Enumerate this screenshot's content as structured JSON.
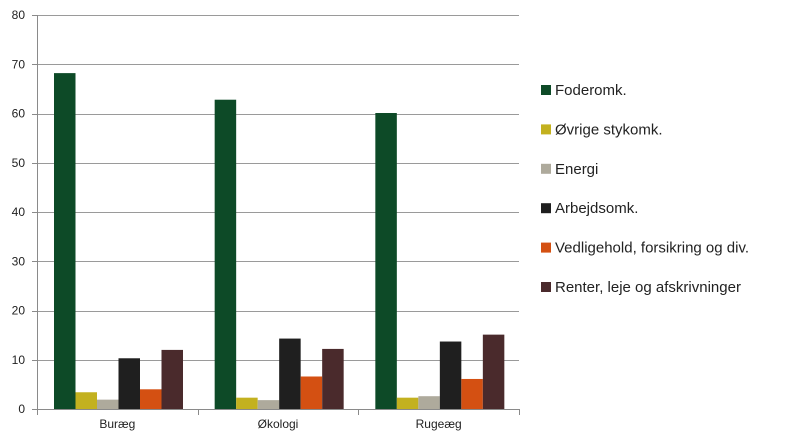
{
  "chart_data": {
    "type": "bar",
    "categories": [
      "Buræg",
      "Økologi",
      "Rugeæg"
    ],
    "series": [
      {
        "name": "Foderomk.",
        "color": "#0d4a27",
        "values": [
          68.2,
          62.8,
          60.1
        ]
      },
      {
        "name": "Øvrige stykomk.",
        "color": "#c3b11f",
        "values": [
          3.4,
          2.3,
          2.3
        ]
      },
      {
        "name": "Energi",
        "color": "#aeaa9c",
        "values": [
          1.9,
          1.8,
          2.6
        ]
      },
      {
        "name": "Arbejdsomk.",
        "color": "#1f1f1f",
        "values": [
          10.3,
          14.3,
          13.7
        ]
      },
      {
        "name": "Vedligehold, forsikring og div.",
        "color": "#d45012",
        "values": [
          4.0,
          6.6,
          6.1
        ]
      },
      {
        "name": "Renter, leje og afskrivninger",
        "color": "#4a2a2c",
        "values": [
          12.0,
          12.2,
          15.1
        ]
      }
    ],
    "y_ticks": [
      "0",
      "10",
      "20",
      "30",
      "40",
      "50",
      "60",
      "70",
      "80"
    ],
    "ylim": [
      0,
      80
    ],
    "grid": true,
    "legend_position": "right"
  }
}
